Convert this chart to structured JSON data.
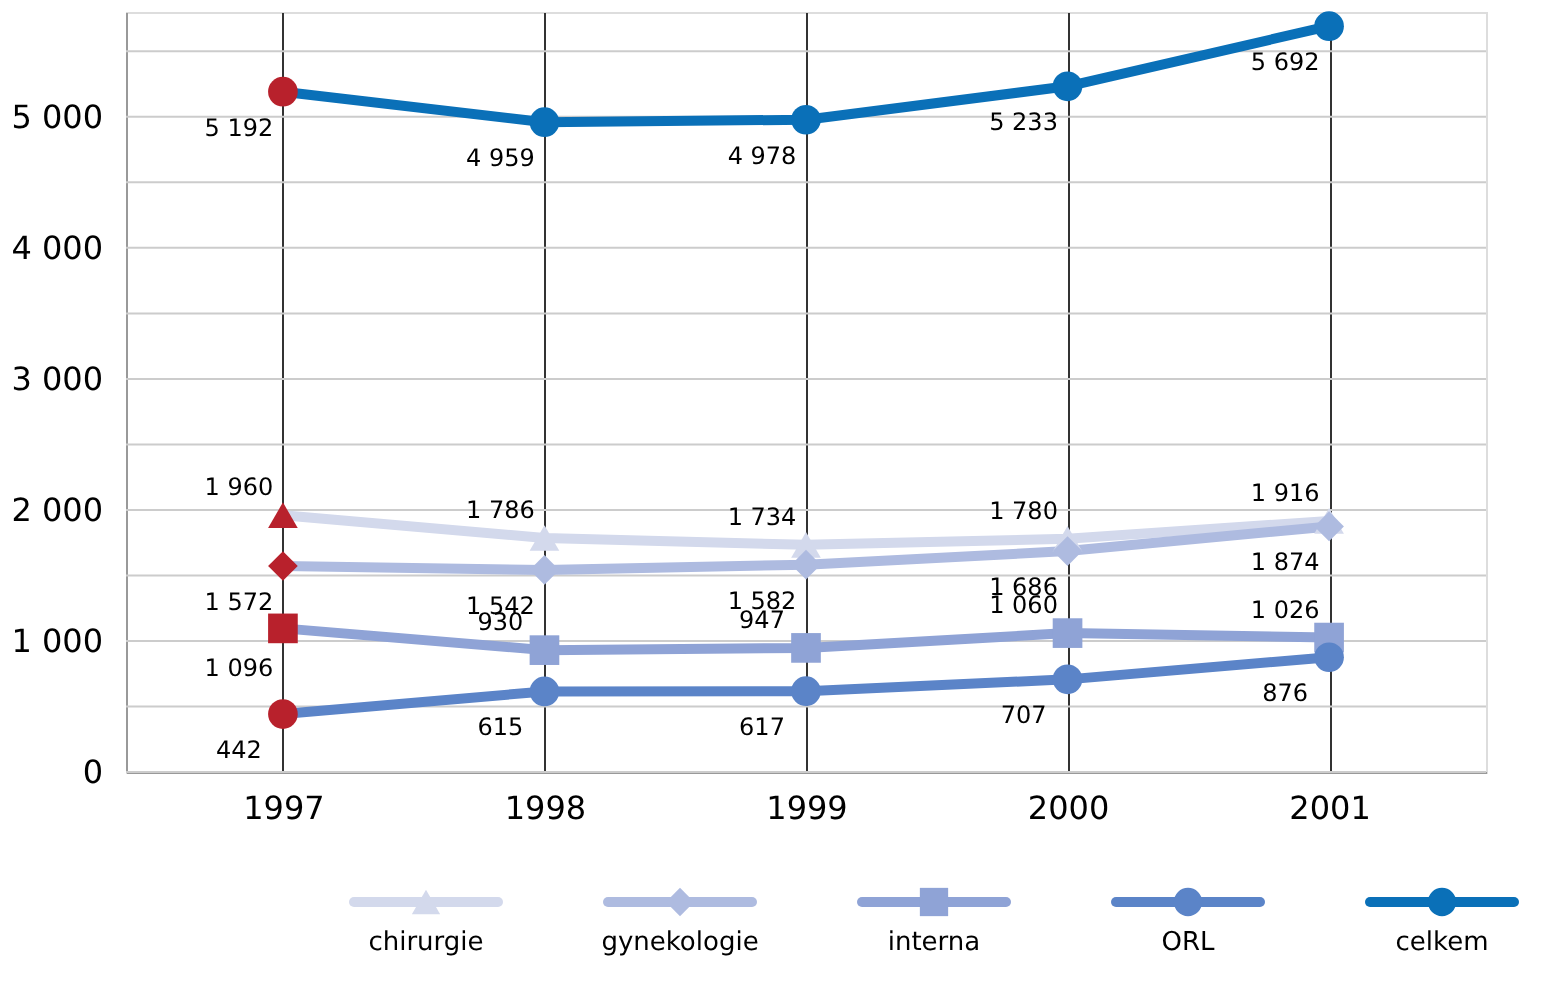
{
  "chart_data": {
    "type": "line",
    "categories": [
      "1997",
      "1998",
      "1999",
      "2000",
      "2001"
    ],
    "series": [
      {
        "name": "chirurgie",
        "color": "#d3d9ec",
        "marker": "triangle",
        "colors": [
          "#b8212c",
          "#d3d9ec",
          "#d3d9ec",
          "#d3d9ec",
          "#d3d9ec"
        ],
        "values": [
          1960,
          1786,
          1734,
          1780,
          1916
        ]
      },
      {
        "name": "gynekologie",
        "color": "#aebbe0",
        "marker": "diamond",
        "colors": [
          "#b8212c",
          "#aebbe0",
          "#aebbe0",
          "#aebbe0",
          "#aebbe0"
        ],
        "values": [
          1572,
          1542,
          1582,
          1686,
          1874
        ]
      },
      {
        "name": "interna",
        "color": "#8fa3d6",
        "marker": "square",
        "colors": [
          "#b8212c",
          "#8fa3d6",
          "#8fa3d6",
          "#8fa3d6",
          "#8fa3d6"
        ],
        "values": [
          1096,
          930,
          947,
          1060,
          1026
        ]
      },
      {
        "name": "ORL",
        "color": "#5b84c8",
        "marker": "circle",
        "colors": [
          "#b8212c",
          "#5b84c8",
          "#5b84c8",
          "#5b84c8",
          "#5b84c8"
        ],
        "values": [
          442,
          615,
          617,
          707,
          876
        ]
      },
      {
        "name": "celkem",
        "color": "#0a70b8",
        "marker": "circle",
        "colors": [
          "#b8212c",
          "#0a70b8",
          "#0a70b8",
          "#0a70b8",
          "#0a70b8"
        ],
        "values": [
          5192,
          4959,
          4978,
          5233,
          5692
        ]
      }
    ],
    "ylim": [
      0,
      5800
    ],
    "yticks": [
      0,
      {
        "value": 500,
        "label": null
      },
      1000,
      {
        "value": 1500,
        "label": null
      },
      2000,
      {
        "value": 2500,
        "label": null
      },
      3000,
      {
        "value": 3500,
        "label": null
      },
      4000,
      {
        "value": 4500,
        "label": null
      },
      5000,
      {
        "value": 5500,
        "label": null
      }
    ],
    "grid": true,
    "legend": "bottom",
    "data_labels": true
  }
}
